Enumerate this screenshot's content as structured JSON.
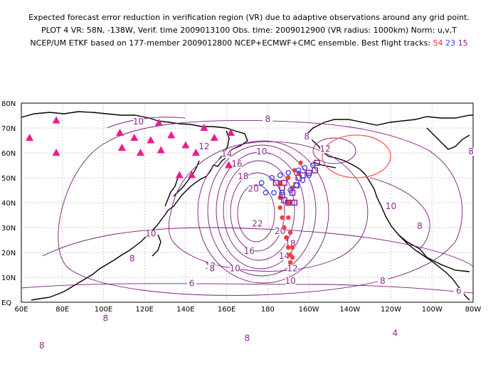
{
  "header": {
    "line1": "Expected forecast error reduction in verification region (VR) due to adaptive observations around any grid point.",
    "line2": "PLOT 4 VR: 58N, -138W, Verif. time 2009013100 Obs. time: 2009012900 (VR radius: 1000km) Norm: u,v,T",
    "line3_prefix": "NCEP/UM ETKF based on 177-member 2009012800 NCEP+ECMWF+CMC ensemble. Best flight tracks:",
    "track_red": "54",
    "track_blue": "23",
    "track_purple": "15"
  },
  "colors": {
    "contour": "#7a1a7a",
    "triangle": "#ee1a8c",
    "track_red": "#ff3a3a",
    "track_blue": "#3a44ff",
    "track_purple": "#8a1a8a",
    "circle": "#ff5a5a"
  },
  "axes": {
    "lat_labels": [
      "80N",
      "70N",
      "60N",
      "50N",
      "40N",
      "30N",
      "20N",
      "10N",
      "EQ"
    ],
    "lon_labels": [
      "60E",
      "80E",
      "100E",
      "120E",
      "140E",
      "160E",
      "180",
      "160W",
      "140W",
      "120W",
      "100W",
      "80W"
    ]
  },
  "contour_labels": [
    {
      "text": "10",
      "lon": 117,
      "lat": 72
    },
    {
      "text": "8",
      "lon": 180,
      "lat": 73
    },
    {
      "text": "8",
      "lon": 199,
      "lat": 66
    },
    {
      "text": "12",
      "lon": 149,
      "lat": 62
    },
    {
      "text": "14",
      "lon": 160,
      "lat": 59
    },
    {
      "text": "10",
      "lon": 177,
      "lat": 60
    },
    {
      "text": "12",
      "lon": 208,
      "lat": 61
    },
    {
      "text": "8",
      "lon": 279,
      "lat": 60
    },
    {
      "text": "16",
      "lon": 165,
      "lat": 55
    },
    {
      "text": "18",
      "lon": 168,
      "lat": 50
    },
    {
      "text": "20",
      "lon": 173,
      "lat": 45
    },
    {
      "text": "22",
      "lon": 175,
      "lat": 31
    },
    {
      "text": "20",
      "lon": 186,
      "lat": 28
    },
    {
      "text": "18",
      "lon": 191,
      "lat": 23
    },
    {
      "text": "16",
      "lon": 171,
      "lat": 20
    },
    {
      "text": "14",
      "lon": 188,
      "lat": 18
    },
    {
      "text": "12",
      "lon": 152,
      "lat": 14
    },
    {
      "text": "10",
      "lon": 164,
      "lat": 13
    },
    {
      "text": "12",
      "lon": 192,
      "lat": 13
    },
    {
      "text": "10",
      "lon": 191,
      "lat": 8
    },
    {
      "text": "8",
      "lon": 114,
      "lat": 17
    },
    {
      "text": "8",
      "lon": 153,
      "lat": 13
    },
    {
      "text": "6",
      "lon": 143,
      "lat": 7
    },
    {
      "text": "8",
      "lon": 101,
      "lat": -7
    },
    {
      "text": "8",
      "lon": 236,
      "lat": 8
    },
    {
      "text": "6",
      "lon": 273,
      "lat": 4
    },
    {
      "text": "4",
      "lon": 242,
      "lat": -13
    },
    {
      "text": "8",
      "lon": 170,
      "lat": -15
    },
    {
      "text": "10",
      "lon": 123,
      "lat": 27
    },
    {
      "text": "10",
      "lon": 240,
      "lat": 38
    },
    {
      "text": "8",
      "lon": 254,
      "lat": 30
    },
    {
      "text": "8",
      "lon": 70,
      "lat": -18
    }
  ],
  "triangles": [
    [
      64,
      66
    ],
    [
      77,
      73
    ],
    [
      77,
      60
    ],
    [
      108,
      68
    ],
    [
      109,
      62
    ],
    [
      115,
      66
    ],
    [
      118,
      60
    ],
    [
      123,
      65
    ],
    [
      127,
      72
    ],
    [
      128,
      61
    ],
    [
      133,
      67
    ],
    [
      140,
      63
    ],
    [
      149,
      70
    ],
    [
      154,
      66
    ],
    [
      162,
      68
    ],
    [
      145,
      60
    ],
    [
      161,
      55
    ],
    [
      137,
      51
    ],
    [
      143,
      51
    ]
  ],
  "track_red": [
    [
      196,
      56
    ],
    [
      193,
      53
    ],
    [
      190,
      50
    ],
    [
      186,
      48
    ],
    [
      186,
      42
    ],
    [
      186,
      38
    ],
    [
      187,
      34
    ],
    [
      188,
      30
    ],
    [
      189,
      26
    ],
    [
      190,
      22
    ],
    [
      191,
      19
    ],
    [
      191,
      16
    ],
    [
      195,
      52
    ],
    [
      192,
      46
    ],
    [
      190,
      40
    ],
    [
      190,
      34
    ],
    [
      191,
      28
    ],
    [
      192,
      22
    ],
    [
      192,
      18
    ]
  ],
  "track_blue": [
    [
      202,
      55
    ],
    [
      198,
      54
    ],
    [
      195,
      53
    ],
    [
      190,
      52
    ],
    [
      186,
      51
    ],
    [
      182,
      50
    ],
    [
      177,
      48
    ],
    [
      179,
      44
    ],
    [
      183,
      44
    ],
    [
      187,
      44
    ],
    [
      191,
      45
    ],
    [
      194,
      47
    ],
    [
      197,
      49
    ],
    [
      200,
      51
    ]
  ],
  "track_purple": [
    [
      204,
      56
    ],
    [
      203,
      53
    ],
    [
      200,
      52
    ],
    [
      197,
      51
    ],
    [
      195,
      50
    ],
    [
      194,
      47
    ],
    [
      192,
      44
    ],
    [
      193,
      40
    ],
    [
      190,
      40
    ],
    [
      188,
      41
    ],
    [
      187,
      43
    ],
    [
      187,
      46
    ],
    [
      188,
      48
    ],
    [
      184,
      48
    ]
  ]
}
